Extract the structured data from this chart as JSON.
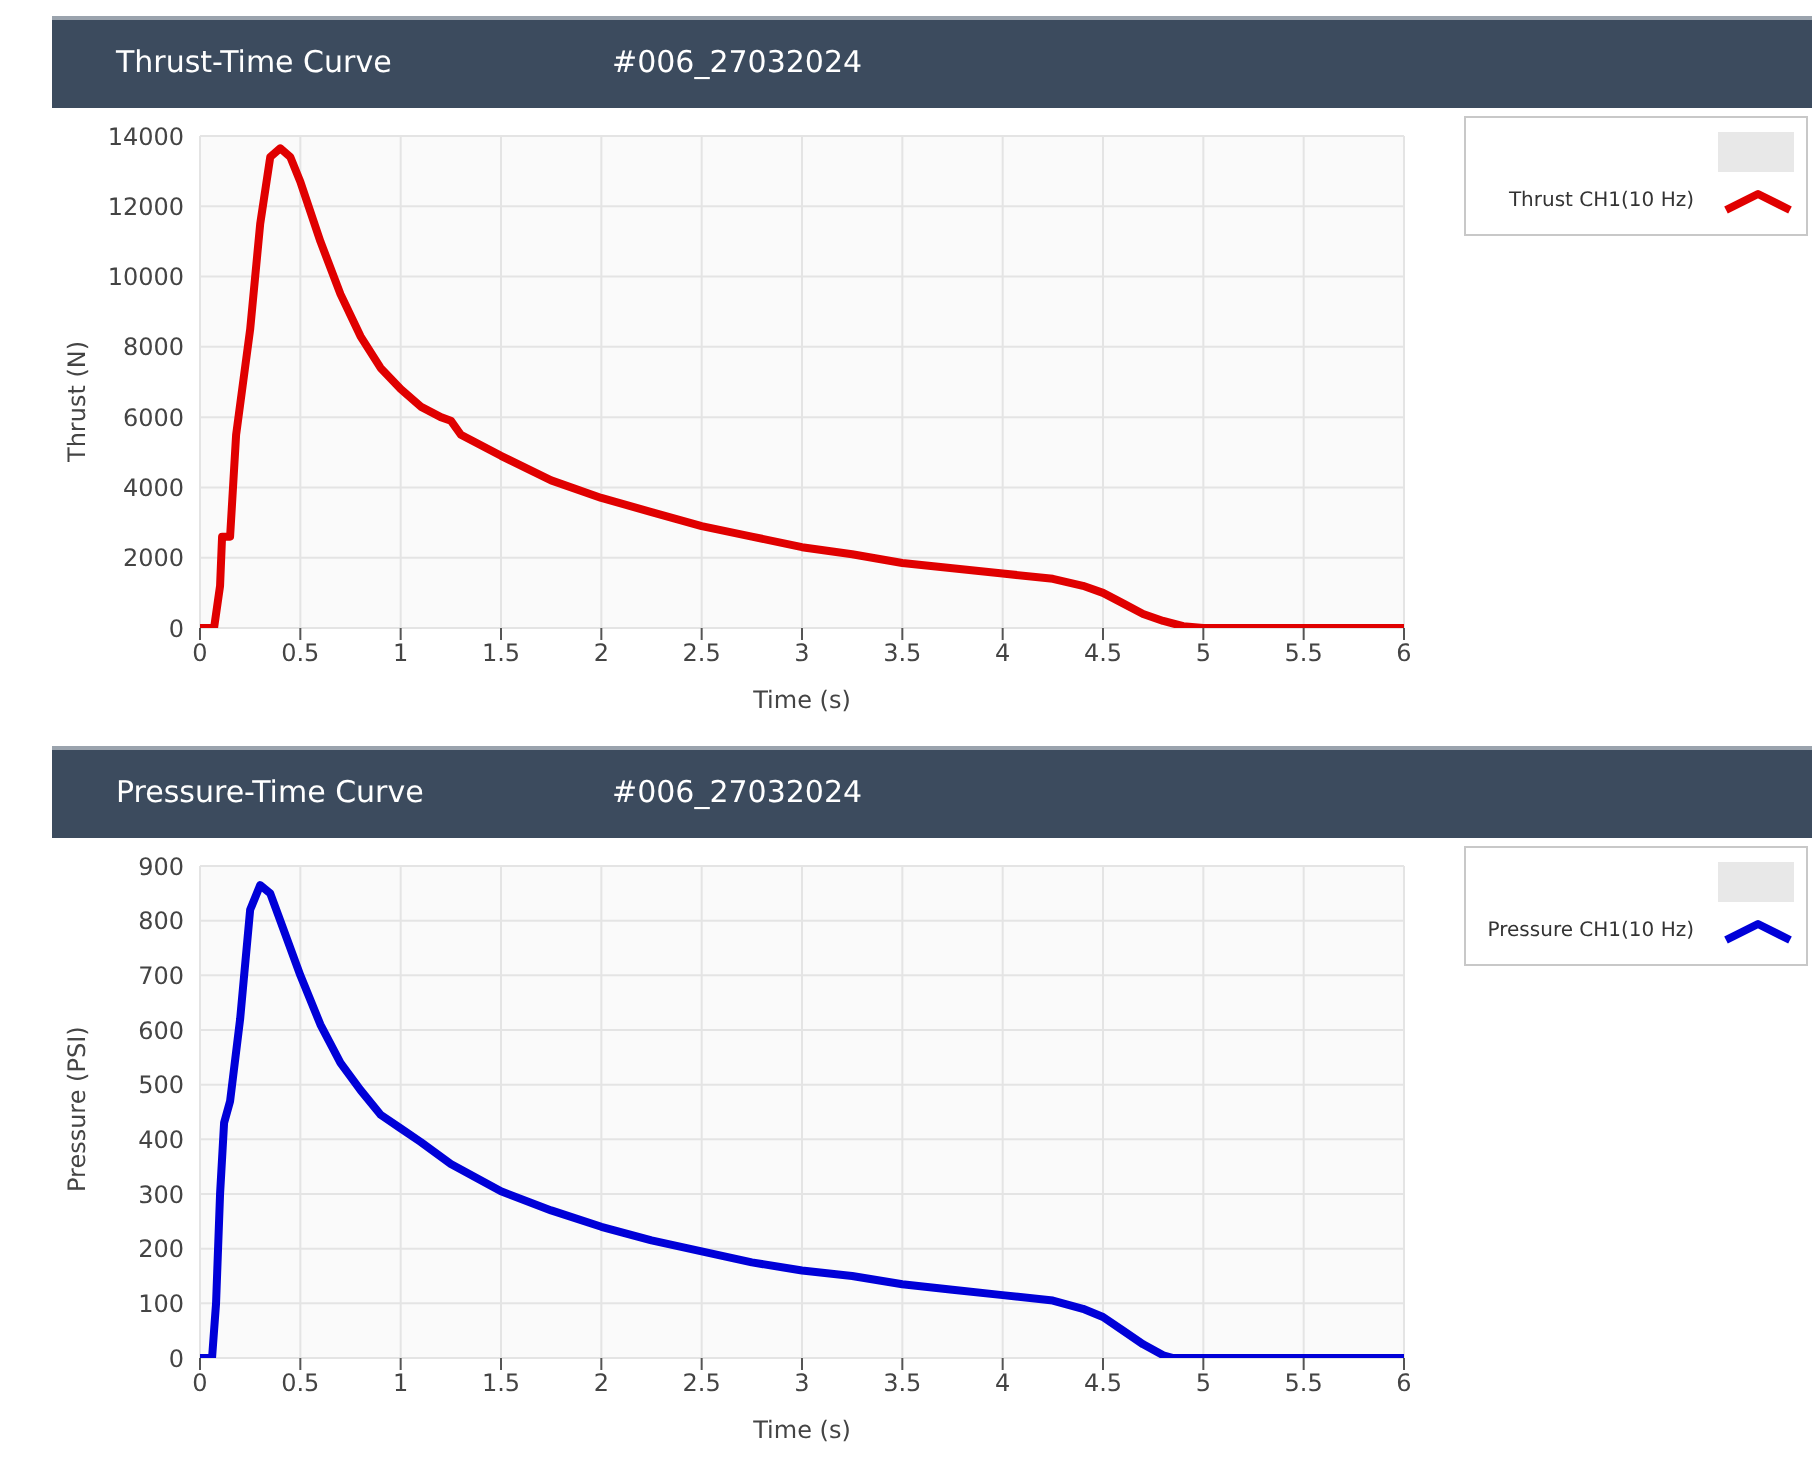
{
  "chart_data": [
    {
      "type": "line",
      "title": "Thrust-Time Curve",
      "subtitle": "#006_27032024",
      "xlabel": "Time (s)",
      "ylabel": "Thrust (N)",
      "x": [
        0,
        0.07,
        0.1,
        0.11,
        0.15,
        0.18,
        0.25,
        0.3,
        0.35,
        0.4,
        0.45,
        0.5,
        0.6,
        0.7,
        0.8,
        0.9,
        1.0,
        1.1,
        1.2,
        1.25,
        1.3,
        1.5,
        1.75,
        2,
        2.25,
        2.5,
        2.75,
        3,
        3.25,
        3.5,
        3.75,
        4,
        4.25,
        4.4,
        4.5,
        4.6,
        4.7,
        4.8,
        4.9,
        5.0,
        6
      ],
      "series": [
        {
          "name": "Thrust CH1(10 Hz)",
          "color": "#e00000",
          "values": [
            0,
            0,
            1200,
            2600,
            2600,
            5500,
            8500,
            11500,
            13400,
            13650,
            13400,
            12700,
            11000,
            9500,
            8300,
            7400,
            6800,
            6300,
            6000,
            5900,
            5500,
            4900,
            4200,
            3700,
            3300,
            2900,
            2600,
            2300,
            2100,
            1850,
            1700,
            1550,
            1400,
            1200,
            1000,
            700,
            400,
            200,
            50,
            0,
            0
          ]
        }
      ],
      "xlim": [
        0,
        6
      ],
      "xticks": [
        0,
        0.5,
        1,
        1.5,
        2,
        2.5,
        3,
        3.5,
        4,
        4.5,
        5,
        5.5,
        6
      ],
      "ylim": [
        0,
        14000
      ],
      "yticks": [
        0,
        2000,
        4000,
        6000,
        8000,
        10000,
        12000,
        14000
      ],
      "grid": true,
      "legend": "top right",
      "marker": "none",
      "line_style": "solid"
    },
    {
      "type": "line",
      "title": "Pressure-Time Curve",
      "subtitle": "#006_27032024",
      "xlabel": "Time (s)",
      "ylabel": "Pressure (PSI)",
      "x": [
        0,
        0.06,
        0.08,
        0.1,
        0.12,
        0.15,
        0.2,
        0.25,
        0.3,
        0.35,
        0.4,
        0.5,
        0.6,
        0.7,
        0.8,
        0.9,
        1,
        1.1,
        1.25,
        1.5,
        1.75,
        2,
        2.25,
        2.5,
        2.75,
        3,
        3.25,
        3.5,
        3.75,
        4,
        4.25,
        4.4,
        4.5,
        4.6,
        4.7,
        4.8,
        4.85,
        6
      ],
      "series": [
        {
          "name": "Pressure CH1(10 Hz)",
          "color": "#0000d8",
          "values": [
            0,
            0,
            100,
            300,
            430,
            470,
            620,
            820,
            865,
            850,
            800,
            700,
            610,
            540,
            490,
            445,
            420,
            395,
            355,
            305,
            270,
            240,
            215,
            195,
            175,
            160,
            150,
            135,
            125,
            115,
            105,
            90,
            75,
            50,
            25,
            5,
            0,
            0
          ]
        }
      ],
      "xlim": [
        0,
        6
      ],
      "xticks": [
        0,
        0.5,
        1,
        1.5,
        2,
        2.5,
        3,
        3.5,
        4,
        4.5,
        5,
        5.5,
        6
      ],
      "ylim": [
        0,
        900
      ],
      "yticks": [
        0,
        100,
        200,
        300,
        400,
        500,
        600,
        700,
        800,
        900
      ],
      "grid": true,
      "legend": "top right",
      "marker": "none",
      "line_style": "solid"
    }
  ]
}
